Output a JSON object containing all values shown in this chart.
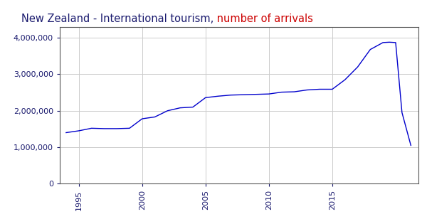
{
  "title_part1": "New Zealand - International tourism,",
  "title_part2": " number of arrivals",
  "title_color1": "#1a1a6e",
  "title_color2": "#cc0000",
  "line_color": "#0000cc",
  "background_color": "#ffffff",
  "grid_color": "#cccccc",
  "xlim": [
    1993.5,
    2021.8
  ],
  "ylim": [
    0,
    4300000
  ],
  "xticks": [
    1995,
    2000,
    2005,
    2010,
    2015
  ],
  "yticks": [
    0,
    1000000,
    2000000,
    3000000,
    4000000
  ],
  "tick_color": "#1a1a6e",
  "years": [
    1994,
    1995,
    1996,
    1997,
    1998,
    1999,
    2000,
    2001,
    2002,
    2003,
    2004,
    2005,
    2006,
    2007,
    2008,
    2009,
    2010,
    2011,
    2012,
    2013,
    2014,
    2015,
    2016,
    2017,
    2018,
    2019,
    2019.5,
    2020,
    2020.5,
    2021.2
  ],
  "arrivals": [
    1400000,
    1450000,
    1520000,
    1510000,
    1510000,
    1520000,
    1780000,
    1830000,
    2000000,
    2080000,
    2100000,
    2360000,
    2400000,
    2430000,
    2440000,
    2450000,
    2460000,
    2510000,
    2520000,
    2570000,
    2590000,
    2590000,
    2850000,
    3200000,
    3680000,
    3870000,
    3880000,
    3870000,
    1950000,
    1050000
  ]
}
